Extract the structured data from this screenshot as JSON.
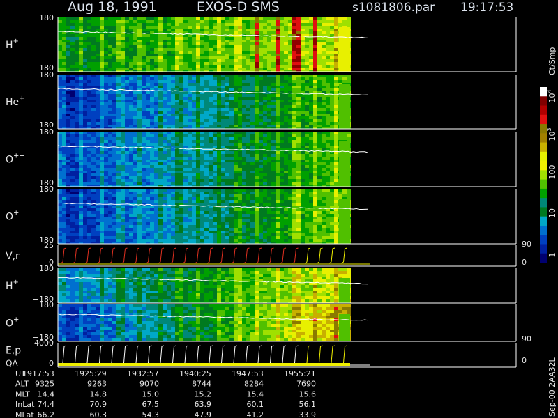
{
  "header": {
    "date": "Aug 18, 1991",
    "instrument": "EXOS-D SMS",
    "file": "s1081806.par",
    "time": "19:17:53"
  },
  "panels": [
    {
      "label": "H",
      "sup": "+",
      "ticks": [
        "180",
        "−180"
      ]
    },
    {
      "label": "He",
      "sup": "+",
      "ticks": [
        "180",
        "−180"
      ]
    },
    {
      "label": "O",
      "sup": "++",
      "ticks": [
        "180",
        "−180"
      ]
    },
    {
      "label": "O",
      "sup": "+",
      "ticks": [
        "180",
        "−180"
      ]
    },
    {
      "label": "V,r",
      "ticks": [
        "25",
        "0"
      ],
      "right_ticks": [
        "90",
        "0"
      ]
    },
    {
      "label": "H",
      "sup": "+",
      "ticks": [
        "180",
        "−180"
      ]
    },
    {
      "label": "O",
      "sup": "+",
      "ticks": [
        "180",
        "−180"
      ],
      "right_ticks": [
        "90"
      ]
    },
    {
      "label": "E,p",
      "label2": "QA",
      "ticks": [
        "4000",
        "0"
      ],
      "right_ticks": [
        "0"
      ]
    }
  ],
  "colorbar": {
    "unit": "Ct/Smp",
    "ticks": [
      {
        "base": "10",
        "exp": "4"
      },
      {
        "base": "10",
        "exp": "3"
      },
      {
        "base": "100"
      },
      {
        "base": "10"
      },
      {
        "base": "1"
      }
    ]
  },
  "ephemeris": {
    "rows": [
      {
        "label": "UT",
        "values": [
          "1917:53",
          "1925:29",
          "1932:57",
          "1940:25",
          "1947:53",
          "1955:21"
        ]
      },
      {
        "label": "ALT",
        "values": [
          "9325",
          "9263",
          "9070",
          "8744",
          "8284",
          "7690"
        ]
      },
      {
        "label": "MLT",
        "values": [
          "14.4",
          "14.8",
          "15.0",
          "15.2",
          "15.4",
          "15.6"
        ]
      },
      {
        "label": "InLat",
        "values": [
          "74.4",
          "70.9",
          "67.5",
          "63.9",
          "60.1",
          "56.1"
        ]
      },
      {
        "label": "MLat",
        "values": [
          "66.2",
          "60.3",
          "54.3",
          "47.9",
          "41.2",
          "33.9"
        ]
      }
    ]
  },
  "footer": "Sep-00 2AA32L"
}
